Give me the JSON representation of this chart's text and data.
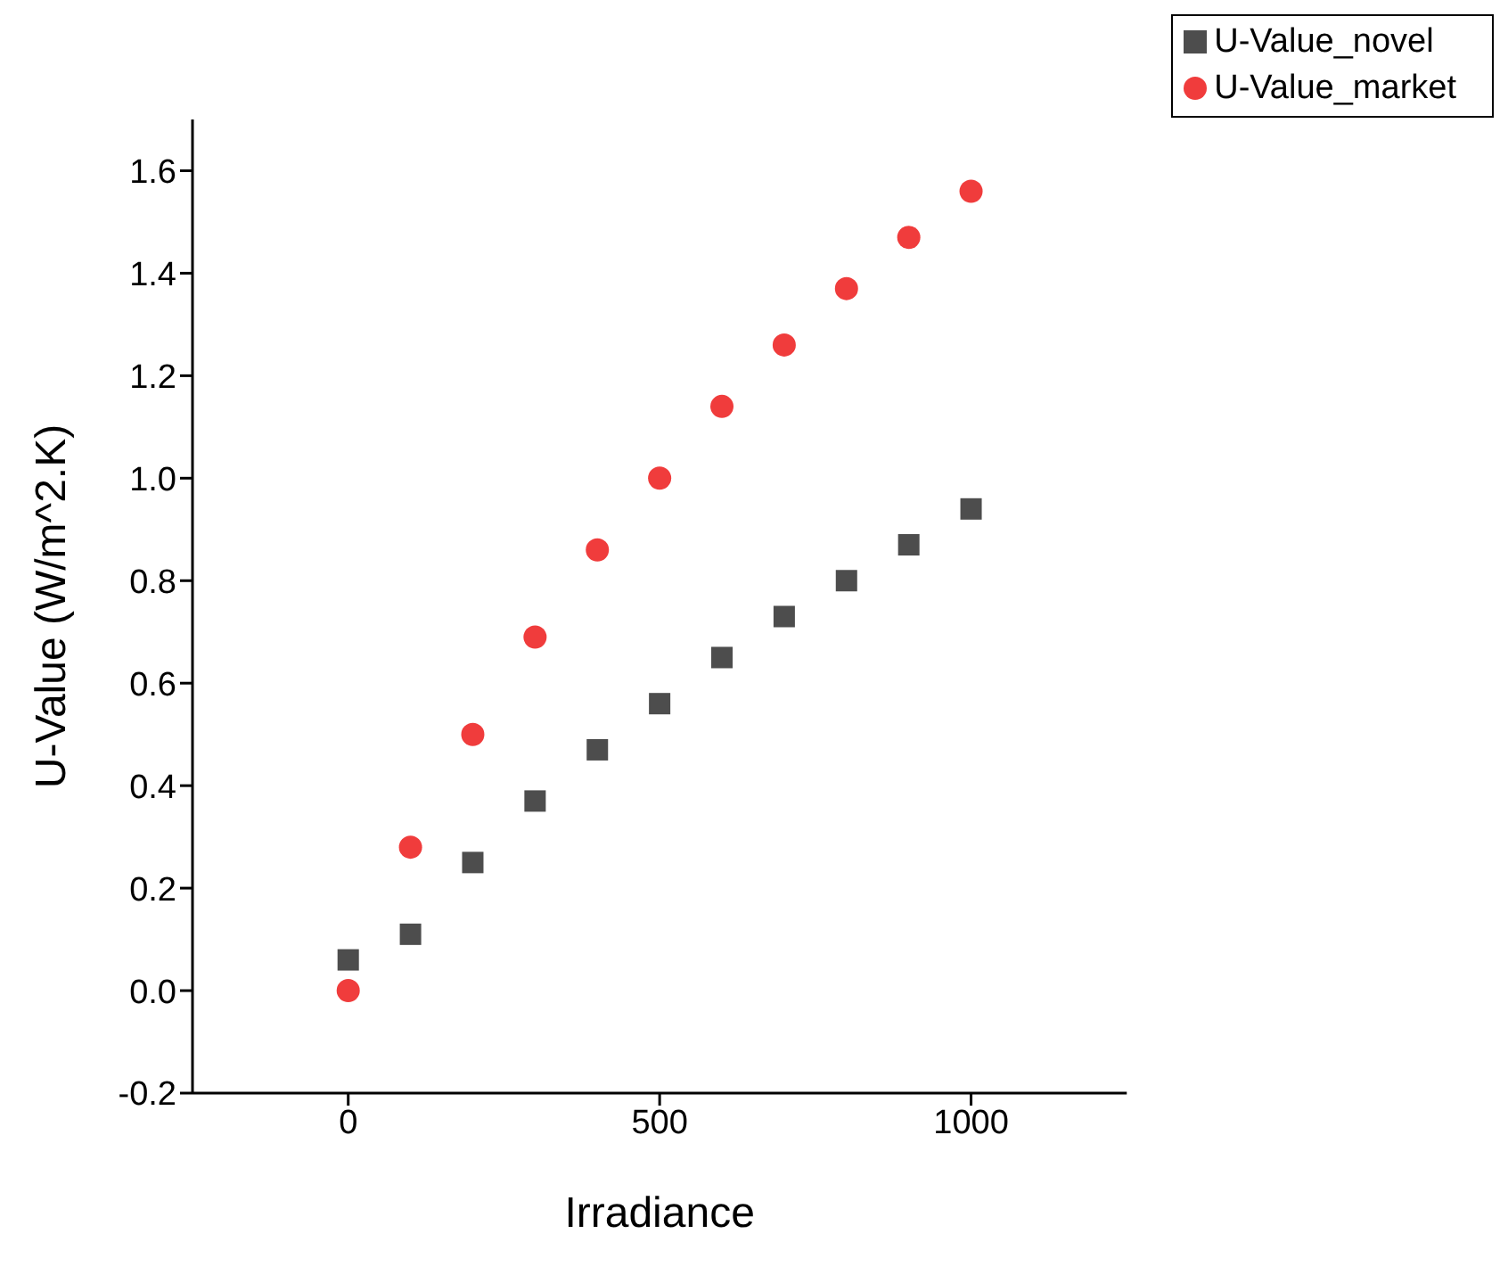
{
  "chart_data": {
    "type": "scatter",
    "xlabel": "Irradiance",
    "ylabel": "U-Value (W/m^2.K)",
    "x": [
      0,
      100,
      200,
      300,
      400,
      500,
      600,
      700,
      800,
      900,
      1000
    ],
    "series": [
      {
        "name": "U-Value_novel",
        "color": "#4d4d4d",
        "marker": "square",
        "values": [
          0.06,
          0.11,
          0.25,
          0.37,
          0.47,
          0.56,
          0.65,
          0.73,
          0.8,
          0.87,
          0.94
        ]
      },
      {
        "name": "U-Value_market",
        "color": "#f03c3c",
        "marker": "circle",
        "values": [
          0.0,
          0.28,
          0.5,
          0.69,
          0.86,
          1.0,
          1.14,
          1.26,
          1.37,
          1.47,
          1.56
        ]
      }
    ],
    "xlim": [
      -250,
      1250
    ],
    "xticks": [
      0,
      500,
      1000
    ],
    "ylim": [
      -0.2,
      1.7
    ],
    "yticks": [
      -0.2,
      {
        "value": 0,
        "label": "0.0"
      },
      0.2,
      0.4,
      0.6,
      0.8,
      {
        "value": 1,
        "label": "1.0"
      },
      1.2,
      1.4,
      1.6
    ],
    "grid": false,
    "legend": "top right"
  }
}
